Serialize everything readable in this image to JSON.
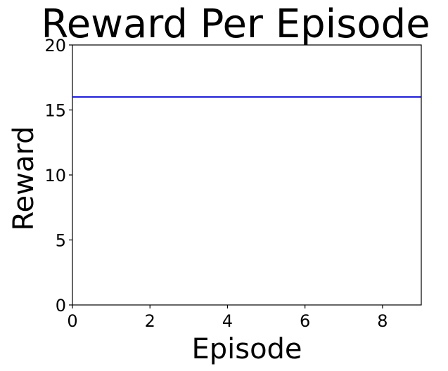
{
  "chart_data": {
    "type": "line",
    "title": "Reward Per Episode",
    "xlabel": "Episode",
    "ylabel": "Reward",
    "xlim": [
      0,
      9
    ],
    "ylim": [
      0,
      20
    ],
    "xticks": [
      0,
      2,
      4,
      6,
      8
    ],
    "yticks": [
      0,
      5,
      10,
      15,
      20
    ],
    "grid": false,
    "series": [
      {
        "color": "#0000cc",
        "x": [
          0,
          1,
          2,
          3,
          4,
          5,
          6,
          7,
          8,
          9
        ],
        "y": [
          16,
          16,
          16,
          16,
          16,
          16,
          16,
          16,
          16,
          16
        ]
      }
    ]
  }
}
